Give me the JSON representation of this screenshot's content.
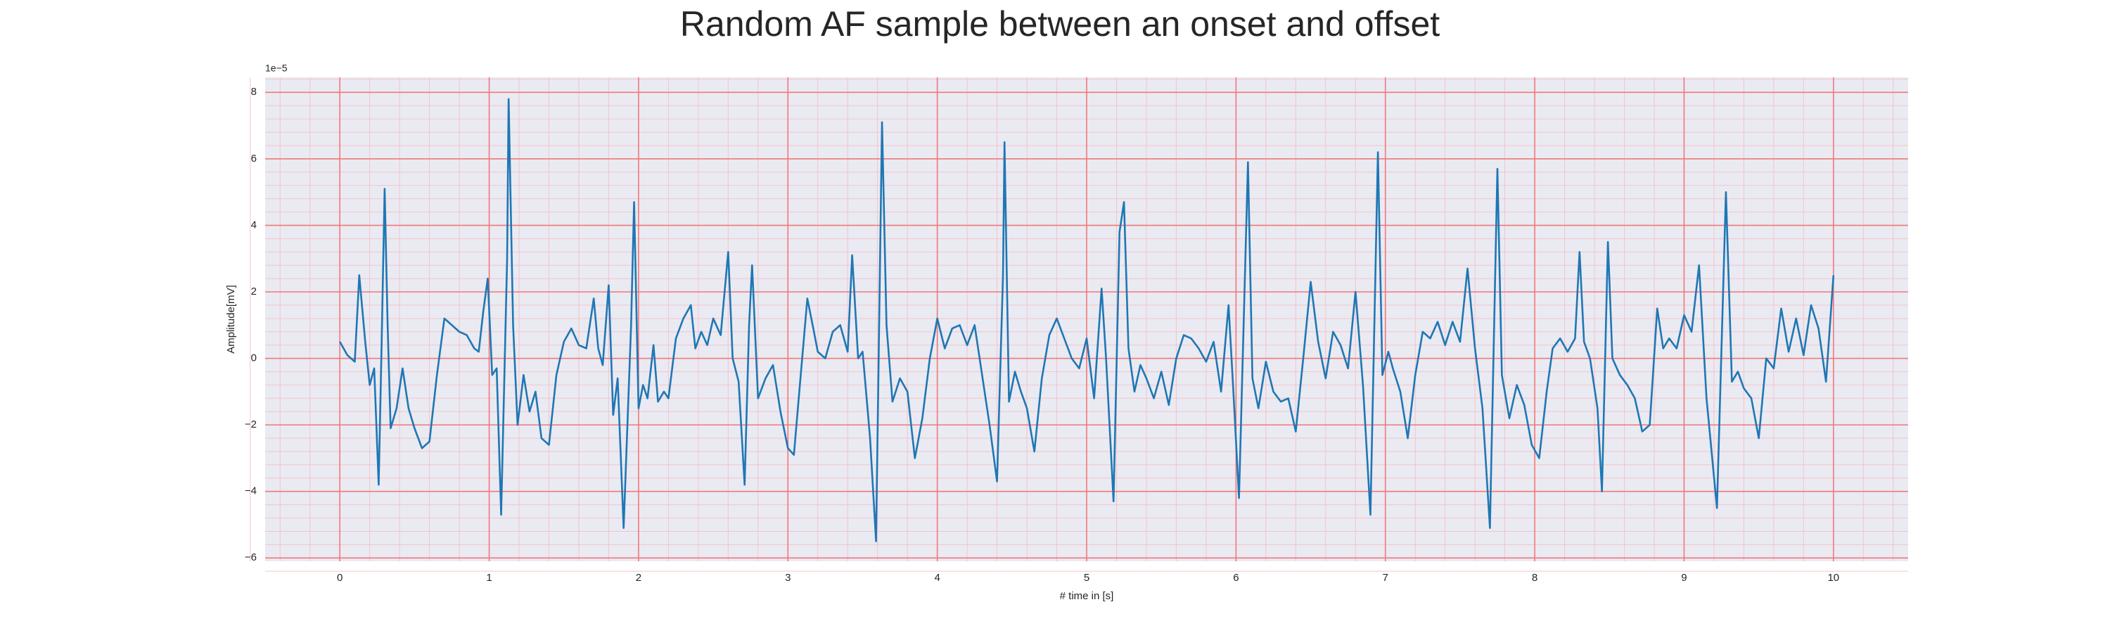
{
  "chart_data": {
    "type": "line",
    "title": "Random AF sample between an onset and offset",
    "xlabel": "# time in [s]",
    "ylabel": "Amplitude[mV]",
    "y_offset_label": "1e−5",
    "color": "#1f77b4",
    "grid": true,
    "grid_color": "#f07878",
    "minor_grid_color": "#f3c4cc",
    "background": "#eaeaf2",
    "xlim": [
      -0.5,
      10.5
    ],
    "xticks": [
      0,
      1,
      2,
      3,
      4,
      5,
      6,
      7,
      8,
      9,
      10
    ],
    "ylim": [
      -6.1,
      8.45
    ],
    "yticks": [
      {
        "value": -6,
        "label": "−6"
      },
      {
        "value": -4,
        "label": "−4"
      },
      {
        "value": -2,
        "label": "−2"
      },
      0,
      2,
      4,
      6,
      8
    ],
    "x": [
      0,
      0.05,
      0.1,
      0.13,
      0.17,
      0.2,
      0.23,
      0.26,
      0.28,
      0.3,
      0.32,
      0.34,
      0.38,
      0.42,
      0.46,
      0.5,
      0.55,
      0.6,
      0.65,
      0.7,
      0.75,
      0.8,
      0.85,
      0.9,
      0.93,
      0.96,
      0.99,
      1.02,
      1.05,
      1.08,
      1.12,
      1.13,
      1.16,
      1.19,
      1.23,
      1.27,
      1.31,
      1.35,
      1.4,
      1.45,
      1.5,
      1.55,
      1.6,
      1.65,
      1.7,
      1.73,
      1.76,
      1.8,
      1.83,
      1.86,
      1.9,
      1.95,
      1.97,
      2.0,
      2.03,
      2.06,
      2.1,
      2.13,
      2.17,
      2.2,
      2.25,
      2.3,
      2.35,
      2.38,
      2.42,
      2.46,
      2.5,
      2.55,
      2.6,
      2.63,
      2.67,
      2.71,
      2.74,
      2.76,
      2.8,
      2.85,
      2.9,
      2.95,
      3.0,
      3.04,
      3.08,
      3.13,
      3.17,
      3.2,
      3.25,
      3.3,
      3.35,
      3.4,
      3.43,
      3.47,
      3.5,
      3.55,
      3.59,
      3.63,
      3.66,
      3.7,
      3.75,
      3.8,
      3.85,
      3.9,
      3.95,
      4.0,
      4.05,
      4.1,
      4.15,
      4.2,
      4.25,
      4.3,
      4.35,
      4.4,
      4.44,
      4.45,
      4.48,
      4.52,
      4.56,
      4.6,
      4.65,
      4.7,
      4.75,
      4.8,
      4.85,
      4.9,
      4.95,
      5.0,
      5.05,
      5.1,
      5.13,
      5.18,
      5.22,
      5.25,
      5.28,
      5.32,
      5.36,
      5.4,
      5.45,
      5.5,
      5.55,
      5.6,
      5.65,
      5.7,
      5.75,
      5.8,
      5.85,
      5.9,
      5.95,
      5.98,
      6.02,
      6.08,
      6.11,
      6.15,
      6.2,
      6.25,
      6.3,
      6.35,
      6.4,
      6.45,
      6.5,
      6.55,
      6.6,
      6.65,
      6.7,
      6.75,
      6.8,
      6.85,
      6.9,
      6.95,
      6.98,
      7.02,
      7.05,
      7.1,
      7.15,
      7.2,
      7.25,
      7.3,
      7.35,
      7.4,
      7.45,
      7.5,
      7.55,
      7.6,
      7.65,
      7.7,
      7.75,
      7.78,
      7.83,
      7.88,
      7.93,
      7.98,
      8.03,
      8.08,
      8.12,
      8.17,
      8.22,
      8.27,
      8.3,
      8.33,
      8.37,
      8.42,
      8.45,
      8.49,
      8.52,
      8.57,
      8.62,
      8.67,
      8.72,
      8.77,
      8.82,
      8.86,
      8.9,
      8.95,
      9.0,
      9.05,
      9.1,
      9.15,
      9.22,
      9.28,
      9.32,
      9.36,
      9.4,
      9.45,
      9.5,
      9.55,
      9.6,
      9.65,
      9.7,
      9.75,
      9.8,
      9.85,
      9.9,
      9.95,
      10.0
    ],
    "values": [
      0.5,
      0.1,
      -0.1,
      2.5,
      0.5,
      -0.8,
      -0.3,
      -3.8,
      0.5,
      5.1,
      1.0,
      -2.1,
      -1.5,
      -0.3,
      -1.5,
      -2.1,
      -2.7,
      -2.5,
      -0.5,
      1.2,
      1.0,
      0.8,
      0.7,
      0.3,
      0.2,
      1.4,
      2.4,
      -0.5,
      -0.3,
      -4.7,
      3.0,
      7.8,
      1.0,
      -2.0,
      -0.5,
      -1.6,
      -1.0,
      -2.4,
      -2.6,
      -0.5,
      0.5,
      0.9,
      0.4,
      0.3,
      1.8,
      0.3,
      -0.2,
      2.2,
      -1.7,
      -0.6,
      -5.1,
      1.0,
      4.7,
      -1.5,
      -0.8,
      -1.2,
      0.4,
      -1.3,
      -1.0,
      -1.2,
      0.6,
      1.2,
      1.6,
      0.3,
      0.8,
      0.4,
      1.2,
      0.7,
      3.2,
      0.0,
      -0.7,
      -3.8,
      1.0,
      2.8,
      -1.2,
      -0.6,
      -0.2,
      -1.6,
      -2.7,
      -2.9,
      -0.8,
      1.8,
      0.9,
      0.2,
      0.0,
      0.8,
      1.0,
      0.2,
      3.1,
      0.0,
      0.2,
      -2.4,
      -5.5,
      7.1,
      1.0,
      -1.3,
      -0.6,
      -1.0,
      -3.0,
      -1.8,
      0.0,
      1.2,
      0.3,
      0.9,
      1.0,
      0.4,
      1.0,
      -0.5,
      -2.0,
      -3.7,
      2.5,
      6.5,
      -1.3,
      -0.4,
      -1.0,
      -1.5,
      -2.8,
      -0.6,
      0.7,
      1.2,
      0.6,
      0.0,
      -0.3,
      0.6,
      -1.2,
      2.1,
      0.0,
      -4.3,
      3.8,
      4.7,
      0.3,
      -1.0,
      -0.2,
      -0.6,
      -1.2,
      -0.4,
      -1.4,
      0.0,
      0.7,
      0.6,
      0.3,
      -0.1,
      0.5,
      -1.0,
      1.6,
      -0.8,
      -4.2,
      5.9,
      -0.6,
      -1.5,
      -0.1,
      -1.0,
      -1.3,
      -1.2,
      -2.2,
      0.0,
      2.3,
      0.5,
      -0.6,
      0.8,
      0.4,
      -0.3,
      2.0,
      -0.8,
      -4.7,
      6.2,
      -0.5,
      0.2,
      -0.3,
      -1.0,
      -2.4,
      -0.5,
      0.8,
      0.6,
      1.1,
      0.4,
      1.1,
      0.5,
      2.7,
      0.3,
      -1.5,
      -5.1,
      5.7,
      -0.5,
      -1.8,
      -0.8,
      -1.4,
      -2.6,
      -3.0,
      -1.0,
      0.3,
      0.6,
      0.2,
      0.6,
      3.2,
      0.5,
      0.0,
      -1.5,
      -4.0,
      3.5,
      0.0,
      -0.5,
      -0.8,
      -1.2,
      -2.2,
      -2.0,
      1.5,
      0.3,
      0.6,
      0.3,
      1.3,
      0.8,
      2.8,
      -1.2,
      -4.5,
      5.0,
      -0.7,
      -0.4,
      -0.9,
      -1.2,
      -2.4,
      0.0,
      -0.3,
      1.5,
      0.2,
      1.2,
      0.1,
      1.6,
      0.9,
      -0.7,
      2.5
    ]
  }
}
